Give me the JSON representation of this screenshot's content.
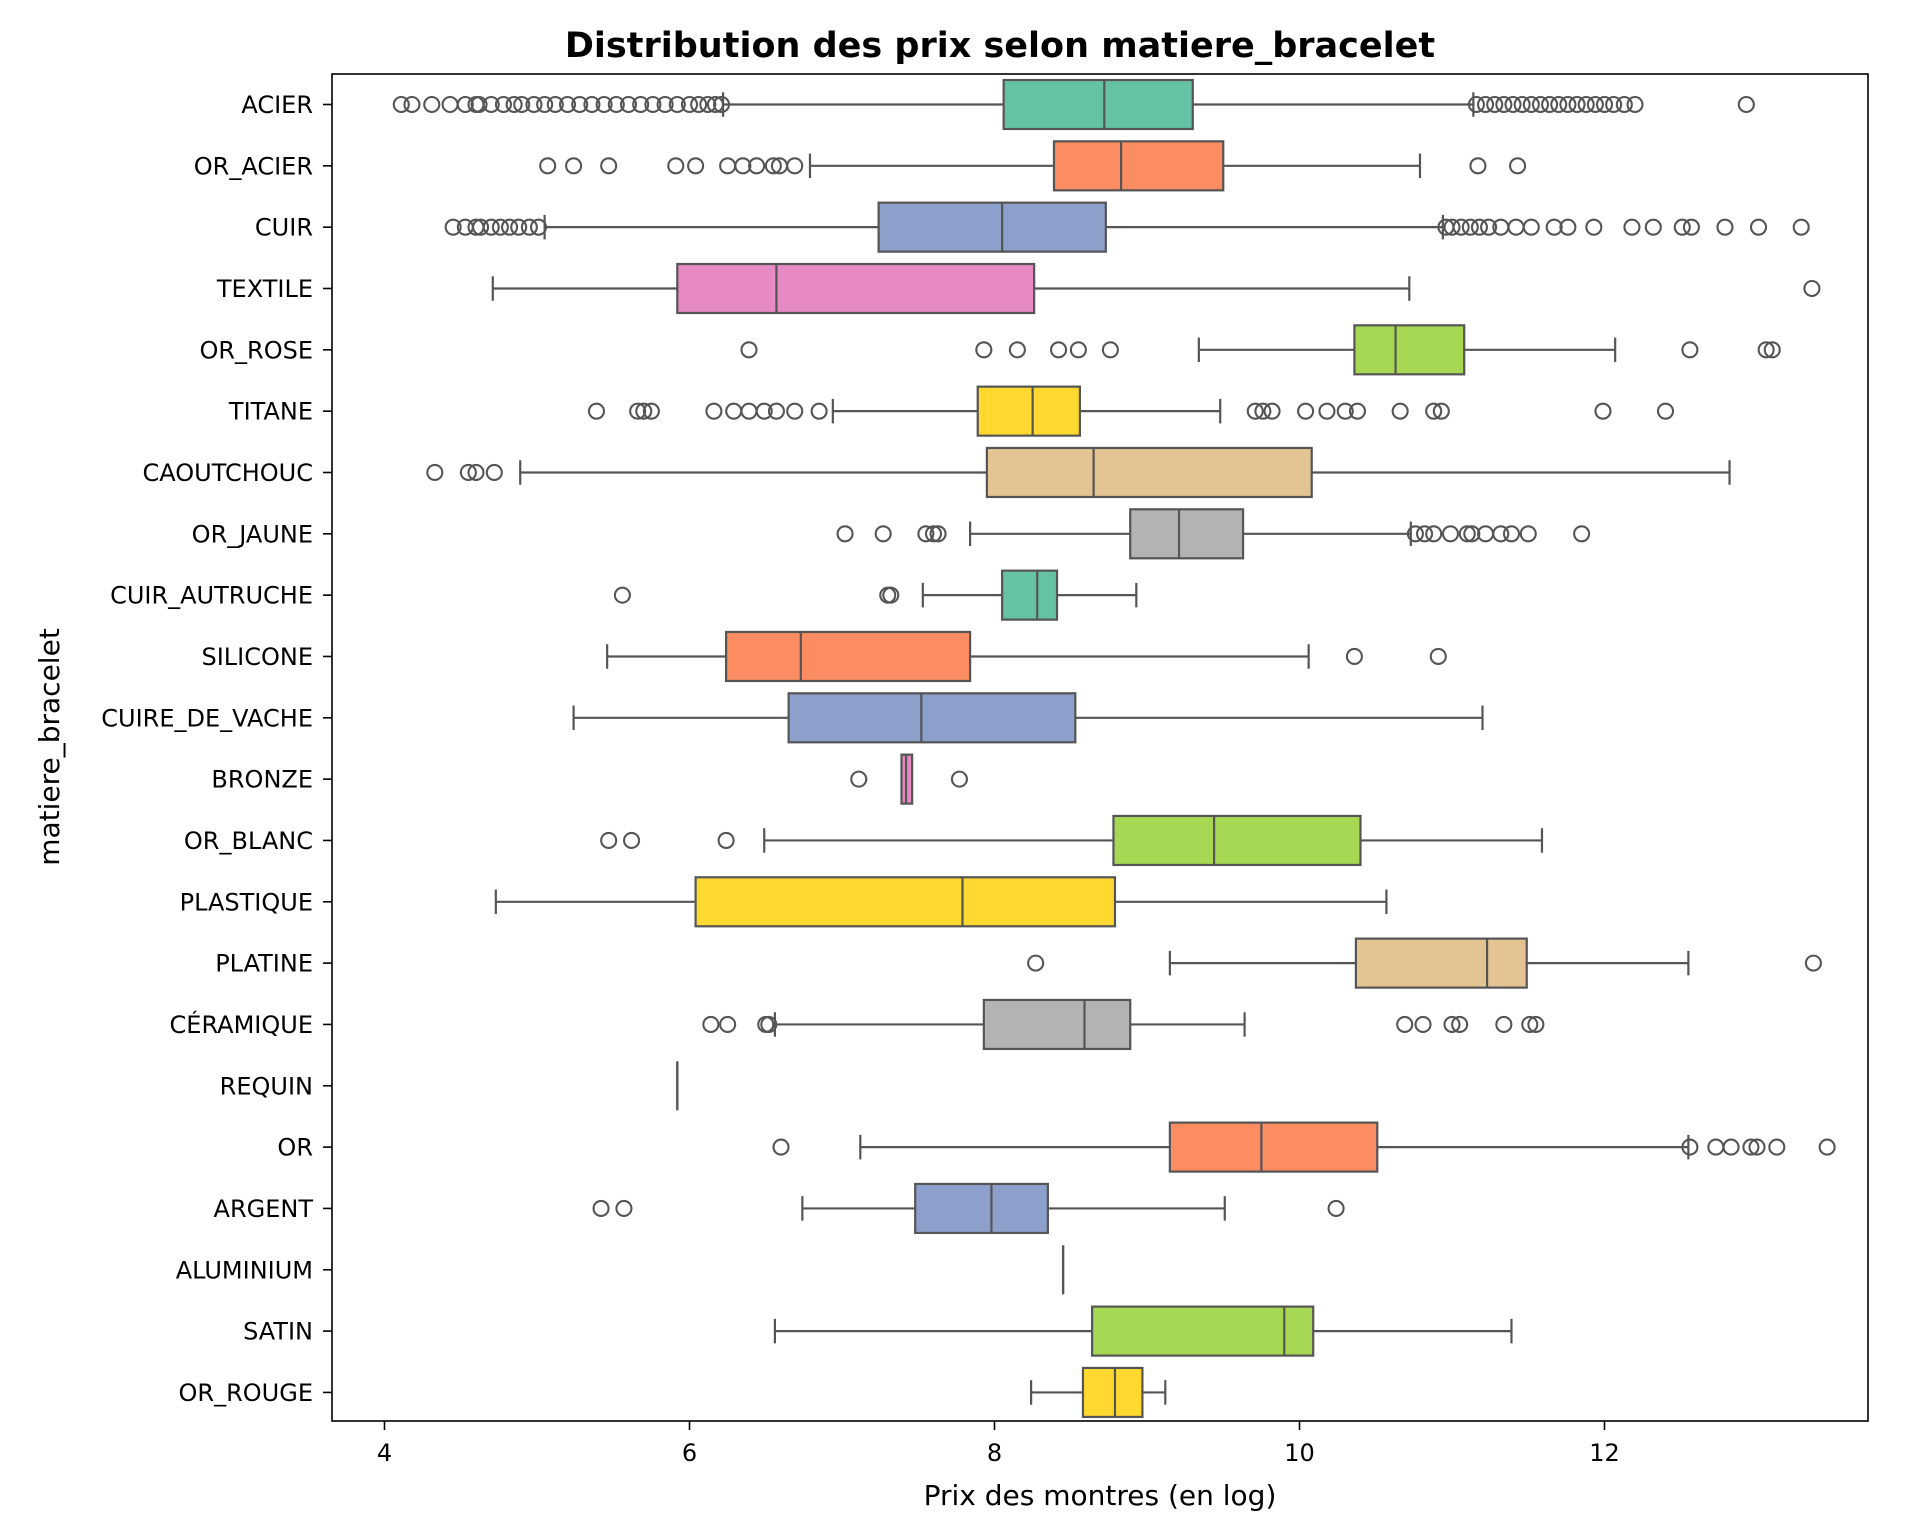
{
  "chart_data": {
    "type": "boxplot",
    "title": "Distribution des prix selon matiere_bracelet",
    "xlabel": "Prix des montres (en log)",
    "ylabel": "matiere_bracelet",
    "xlim": [
      3.7,
      13.7
    ],
    "xticks": [
      4,
      6,
      8,
      10,
      12
    ],
    "grid": false,
    "legend": false,
    "palette": [
      "#66c2a5",
      "#fc8d62",
      "#8da0cb",
      "#e78ac3",
      "#a6d854",
      "#ffd92f",
      "#e5c494",
      "#b3b3b3"
    ],
    "edge_color": "#555555",
    "categories": [
      {
        "label": "ACIER",
        "whisker_low": 6.22,
        "q1": 8.06,
        "median": 8.72,
        "q3": 9.3,
        "whisker_high": 11.14,
        "outliers": [
          4.11,
          4.18,
          4.31,
          4.43,
          4.53,
          4.6,
          4.62,
          4.7,
          4.78,
          4.85,
          4.9,
          4.98,
          5.05,
          5.12,
          5.2,
          5.28,
          5.36,
          5.44,
          5.52,
          5.6,
          5.68,
          5.76,
          5.84,
          5.92,
          6.0,
          6.06,
          6.12,
          6.17,
          6.21,
          11.16,
          11.22,
          11.28,
          11.34,
          11.4,
          11.46,
          11.52,
          11.58,
          11.64,
          11.7,
          11.76,
          11.82,
          11.88,
          11.94,
          12.0,
          12.06,
          12.13,
          12.2,
          12.93
        ]
      },
      {
        "label": "OR_ACIER",
        "whisker_low": 6.79,
        "q1": 8.39,
        "median": 8.83,
        "q3": 9.5,
        "whisker_high": 10.79,
        "outliers": [
          5.07,
          5.24,
          5.47,
          5.91,
          6.04,
          6.25,
          6.35,
          6.44,
          6.55,
          6.59,
          6.69,
          11.17,
          11.43
        ]
      },
      {
        "label": "CUIR",
        "whisker_low": 5.05,
        "q1": 7.24,
        "median": 8.05,
        "q3": 8.73,
        "whisker_high": 10.94,
        "outliers": [
          4.45,
          4.53,
          4.6,
          4.63,
          4.7,
          4.76,
          4.82,
          4.88,
          4.95,
          5.01,
          10.96,
          11.0,
          11.06,
          11.12,
          11.18,
          11.24,
          11.32,
          11.42,
          11.52,
          11.67,
          11.76,
          11.93,
          12.18,
          12.32,
          12.51,
          12.57,
          12.79,
          13.01,
          13.29
        ]
      },
      {
        "label": "TEXTILE",
        "whisker_low": 4.71,
        "q1": 5.92,
        "median": 6.57,
        "q3": 8.26,
        "whisker_high": 10.72,
        "outliers": [
          13.36
        ]
      },
      {
        "label": "OR_ROSE",
        "whisker_low": 9.34,
        "q1": 10.36,
        "median": 10.63,
        "q3": 11.08,
        "whisker_high": 12.07,
        "outliers": [
          6.39,
          7.93,
          8.15,
          8.42,
          8.55,
          8.76,
          12.56,
          13.06,
          13.1
        ]
      },
      {
        "label": "TITANE",
        "whisker_low": 6.94,
        "q1": 7.89,
        "median": 8.25,
        "q3": 8.56,
        "whisker_high": 9.48,
        "outliers": [
          5.39,
          5.66,
          5.7,
          5.75,
          6.16,
          6.29,
          6.39,
          6.49,
          6.57,
          6.69,
          6.85,
          9.71,
          9.76,
          9.82,
          10.04,
          10.18,
          10.3,
          10.38,
          10.66,
          10.88,
          10.93,
          11.99,
          12.4
        ]
      },
      {
        "label": "CAOUTCHOUC",
        "whisker_low": 4.89,
        "q1": 7.95,
        "median": 8.65,
        "q3": 10.08,
        "whisker_high": 12.82,
        "outliers": [
          4.33,
          4.55,
          4.6,
          4.72
        ]
      },
      {
        "label": "OR_JAUNE",
        "whisker_low": 7.84,
        "q1": 8.89,
        "median": 9.21,
        "q3": 9.63,
        "whisker_high": 10.73,
        "outliers": [
          7.02,
          7.27,
          7.55,
          7.6,
          7.63,
          10.76,
          10.82,
          10.88,
          10.99,
          11.1,
          11.13,
          11.22,
          11.32,
          11.39,
          11.5,
          11.85
        ]
      },
      {
        "label": "CUIR_AUTRUCHE",
        "whisker_low": 7.53,
        "q1": 8.05,
        "median": 8.28,
        "q3": 8.41,
        "whisker_high": 8.93,
        "outliers": [
          5.56,
          7.3,
          7.32
        ]
      },
      {
        "label": "SILICONE",
        "whisker_low": 5.46,
        "q1": 6.24,
        "median": 6.73,
        "q3": 7.84,
        "whisker_high": 10.06,
        "outliers": [
          10.36,
          10.91
        ]
      },
      {
        "label": "CUIRE_DE_VACHE",
        "whisker_low": 5.24,
        "q1": 6.65,
        "median": 7.52,
        "q3": 8.53,
        "whisker_high": 11.2,
        "outliers": []
      },
      {
        "label": "BRONZE",
        "whisker_low": 7.39,
        "q1": 7.39,
        "median": 7.42,
        "q3": 7.46,
        "whisker_high": 7.46,
        "outliers": [
          7.11,
          7.77
        ]
      },
      {
        "label": "OR_BLANC",
        "whisker_low": 6.49,
        "q1": 8.78,
        "median": 9.44,
        "q3": 10.4,
        "whisker_high": 11.59,
        "outliers": [
          5.47,
          5.62,
          6.24
        ]
      },
      {
        "label": "PLASTIQUE",
        "whisker_low": 4.73,
        "q1": 6.04,
        "median": 7.79,
        "q3": 8.79,
        "whisker_high": 10.57,
        "outliers": []
      },
      {
        "label": "PLATINE",
        "whisker_low": 9.15,
        "q1": 10.37,
        "median": 11.23,
        "q3": 11.49,
        "whisker_high": 12.55,
        "outliers": [
          8.27,
          13.37
        ]
      },
      {
        "label": "CÉRAMIQUE",
        "whisker_low": 6.56,
        "q1": 7.93,
        "median": 8.59,
        "q3": 8.89,
        "whisker_high": 9.64,
        "outliers": [
          6.14,
          6.25,
          6.5,
          6.52,
          10.69,
          10.81,
          11.0,
          11.05,
          11.34,
          11.51,
          11.55
        ]
      },
      {
        "label": "REQUIN",
        "whisker_low": 5.92,
        "q1": 5.92,
        "median": 5.92,
        "q3": 5.92,
        "whisker_high": 5.92,
        "outliers": []
      },
      {
        "label": "OR",
        "whisker_low": 7.12,
        "q1": 9.15,
        "median": 9.75,
        "q3": 10.51,
        "whisker_high": 12.55,
        "outliers": [
          6.6,
          12.56,
          12.73,
          12.83,
          12.96,
          13.0,
          13.13,
          13.46
        ]
      },
      {
        "label": "ARGENT",
        "whisker_low": 6.74,
        "q1": 7.48,
        "median": 7.98,
        "q3": 8.35,
        "whisker_high": 9.51,
        "outliers": [
          5.42,
          5.57,
          10.24
        ]
      },
      {
        "label": "ALUMINIUM",
        "whisker_low": 8.45,
        "q1": 8.45,
        "median": 8.45,
        "q3": 8.45,
        "whisker_high": 8.45,
        "outliers": []
      },
      {
        "label": "SATIN",
        "whisker_low": 6.56,
        "q1": 8.64,
        "median": 9.9,
        "q3": 10.09,
        "whisker_high": 11.39,
        "outliers": []
      },
      {
        "label": "OR_ROUGE",
        "whisker_low": 8.24,
        "q1": 8.58,
        "median": 8.79,
        "q3": 8.97,
        "whisker_high": 9.12,
        "outliers": []
      }
    ]
  }
}
